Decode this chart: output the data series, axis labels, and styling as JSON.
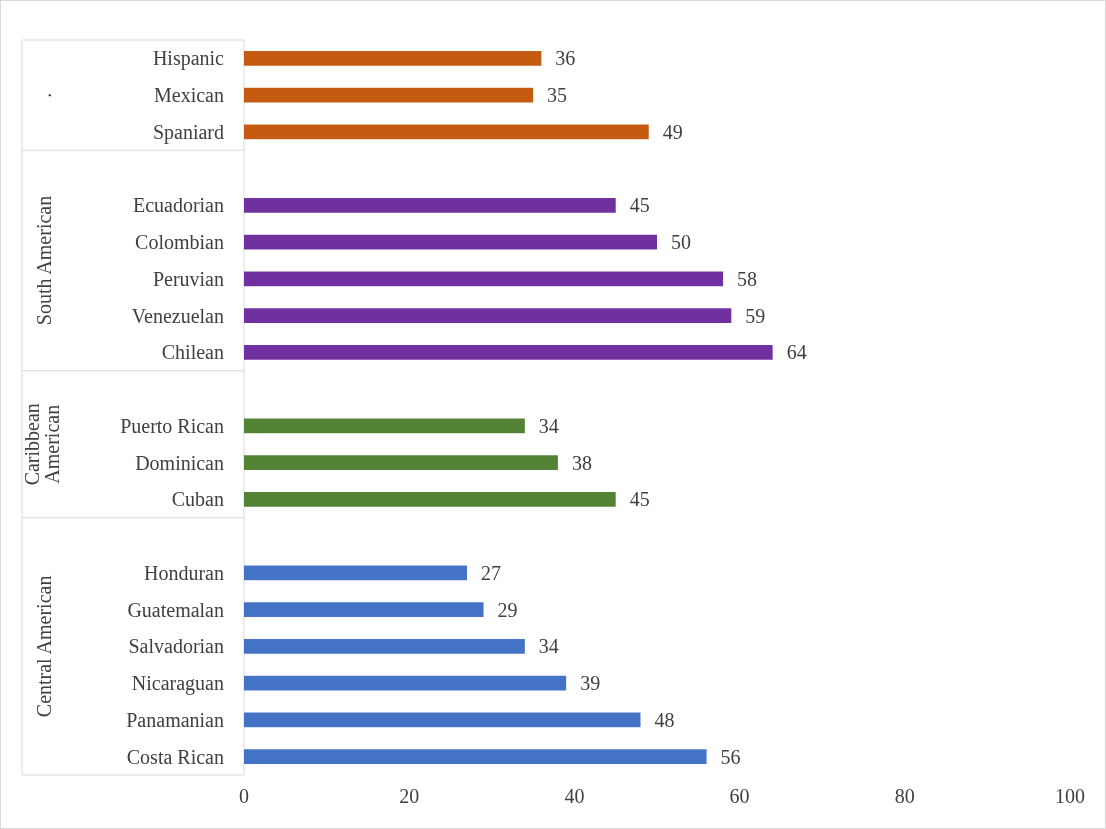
{
  "chart_data": {
    "type": "bar",
    "orientation": "horizontal",
    "categories": [
      "Hispanic",
      "Mexican",
      "Spaniard",
      null,
      "Ecuadorian",
      "Colombian",
      "Peruvian",
      "Venezuelan",
      "Chilean",
      null,
      "Puerto Rican",
      "Dominican",
      "Cuban",
      null,
      "Honduran",
      "Guatemalan",
      "Salvadorian",
      "Nicaraguan",
      "Panamanian",
      "Costa Rican"
    ],
    "values": [
      36,
      35,
      49,
      null,
      45,
      50,
      58,
      59,
      64,
      null,
      34,
      38,
      45,
      null,
      27,
      29,
      34,
      39,
      48,
      56
    ],
    "colors": [
      "#c55a11",
      "#c55a11",
      "#c55a11",
      null,
      "#7030a0",
      "#7030a0",
      "#7030a0",
      "#7030a0",
      "#7030a0",
      null,
      "#548235",
      "#548235",
      "#548235",
      null,
      "#4472c4",
      "#4472c4",
      "#4472c4",
      "#4472c4",
      "#4472c4",
      "#4472c4"
    ],
    "xlim": [
      0,
      100
    ],
    "xticks": [
      0,
      20,
      40,
      60,
      80,
      100
    ],
    "data_labels": true,
    "annotations": [
      ".",
      "South American",
      "Caribbean American",
      "Central American"
    ]
  }
}
